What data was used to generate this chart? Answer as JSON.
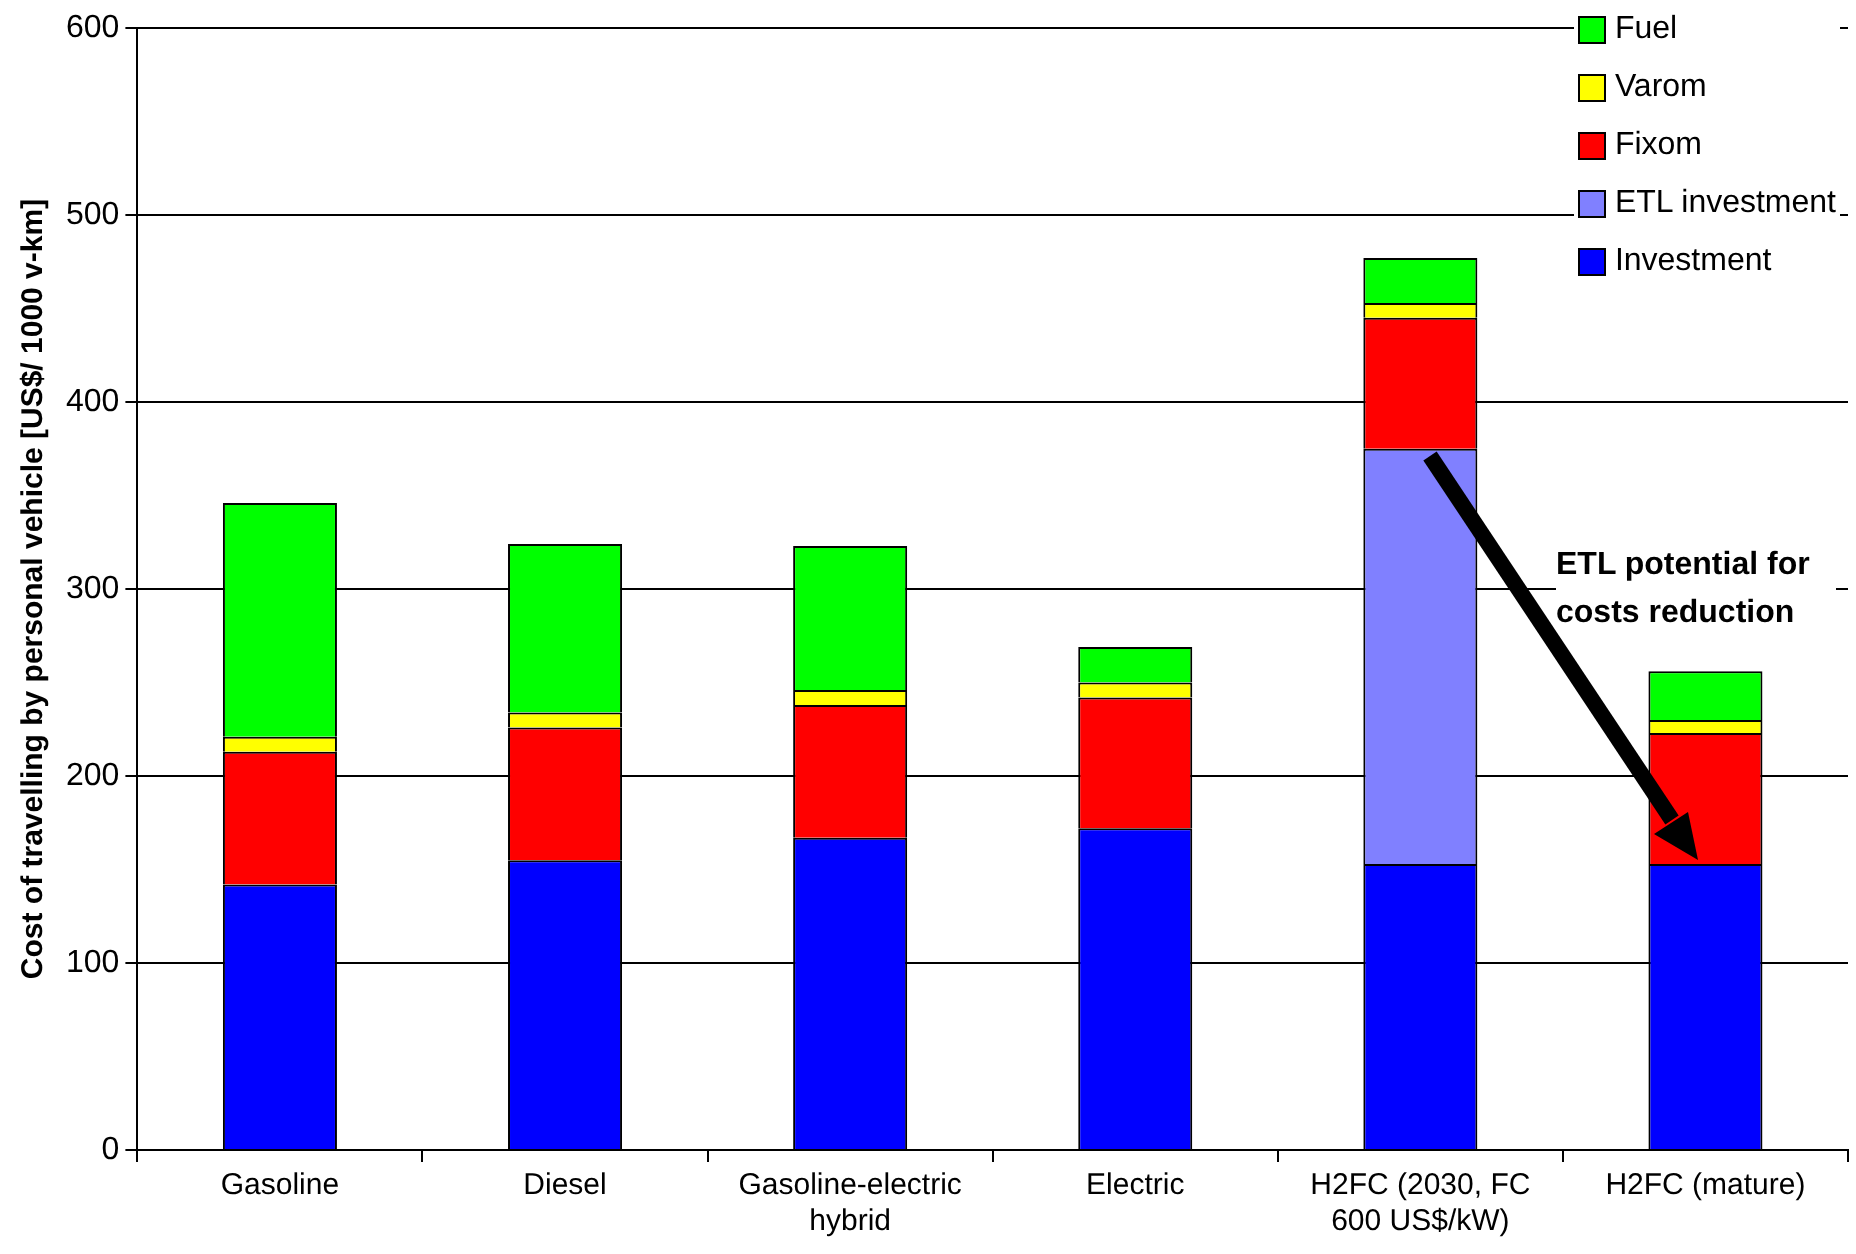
{
  "chart_data": {
    "type": "bar",
    "stacked": true,
    "ylabel": "Cost of travelling by personal vehicle [US$/ 1000 v-km]",
    "categories": [
      "Gasoline",
      "Diesel",
      "Gasoline-electric hybrid",
      "Electric",
      "H2FC (2030, FC 600 US$/kW)",
      "H2FC (mature)"
    ],
    "series": [
      {
        "name": "Investment",
        "color": "#0000ff",
        "values": [
          142,
          155,
          167,
          172,
          153,
          153
        ]
      },
      {
        "name": "ETL investment",
        "color": "#8080ff",
        "values": [
          0,
          0,
          0,
          0,
          222,
          0
        ]
      },
      {
        "name": "Fixom",
        "color": "#ff0000",
        "values": [
          71,
          71,
          71,
          70,
          70,
          70
        ]
      },
      {
        "name": "Varom",
        "color": "#ffff00",
        "values": [
          8,
          8,
          8,
          8,
          8,
          7
        ]
      },
      {
        "name": "Fuel",
        "color": "#00ff00",
        "values": [
          125,
          90,
          77,
          19,
          24,
          26
        ]
      }
    ],
    "ylim": [
      0,
      600
    ],
    "yticks": [
      0,
      100,
      200,
      300,
      400,
      500,
      600
    ],
    "grid": "y",
    "legend": "top right",
    "annotations": [
      "ETL potential for costs reduction"
    ]
  }
}
